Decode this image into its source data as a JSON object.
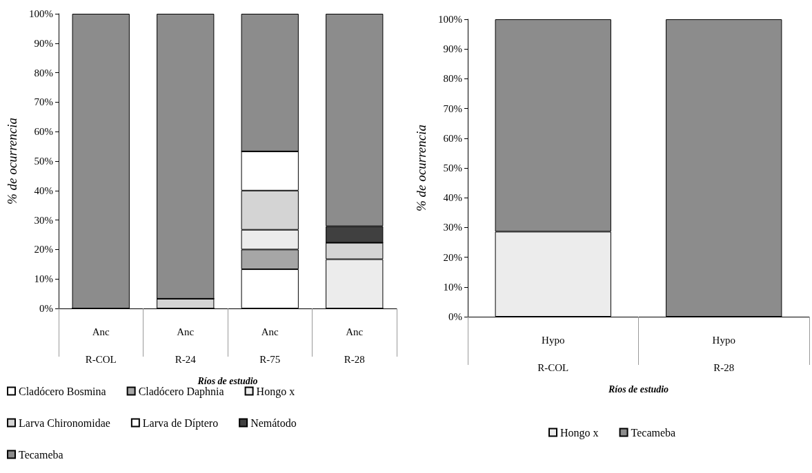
{
  "chart_data": [
    {
      "type": "bar",
      "stacked": true,
      "xlabel": "Ríos de estudio",
      "ylabel": "% de ocurrencia",
      "categories": [
        "Anc\nR-COL",
        "Anc\nR-24",
        "Anc\nR-75",
        "Anc\nR-28"
      ],
      "ylim": [
        0,
        100
      ],
      "yticks": [
        {
          "value": 0,
          "label": "0%"
        },
        {
          "value": 10,
          "label": "10%"
        },
        {
          "value": 20,
          "label": "20%"
        },
        {
          "value": 30,
          "label": "30%"
        },
        {
          "value": 40,
          "label": "40%"
        },
        {
          "value": 50,
          "label": "50%"
        },
        {
          "value": 60,
          "label": "60%"
        },
        {
          "value": 70,
          "label": "70%"
        },
        {
          "value": 80,
          "label": "80%"
        },
        {
          "value": 90,
          "label": "90%"
        },
        {
          "value": 100,
          "label": "100%"
        }
      ],
      "grid": false,
      "legend": "bottom left",
      "series": [
        {
          "name": "Cladócero Bosmina",
          "color": "#ffffff",
          "values": [
            0,
            0,
            13.3,
            0
          ]
        },
        {
          "name": "Cladócero Daphnia",
          "color": "#a6a6a6",
          "values": [
            0,
            0,
            6.7,
            0
          ]
        },
        {
          "name": "Hongo x",
          "color": "#ececec",
          "values": [
            0,
            0,
            6.7,
            16.7
          ]
        },
        {
          "name": "Larva Chironomidae",
          "color": "#d4d4d4",
          "values": [
            0,
            3.3,
            13.3,
            5.6
          ]
        },
        {
          "name": "Larva de Díptero",
          "color": "#ffffff",
          "values": [
            0,
            0,
            13.3,
            0
          ]
        },
        {
          "name": "Nemátodo",
          "color": "#404040",
          "values": [
            0,
            0,
            0,
            5.6
          ]
        },
        {
          "name": "Tecameba",
          "color": "#8c8c8c",
          "values": [
            100,
            96.7,
            46.7,
            72.1
          ]
        }
      ]
    },
    {
      "type": "bar",
      "stacked": true,
      "xlabel": "Ríos de estudio",
      "ylabel": "% de ocurrencia",
      "categories": [
        "Hypo\nR-COL",
        "Hypo\nR-28"
      ],
      "ylim": [
        0,
        100
      ],
      "yticks": [
        {
          "value": 0,
          "label": "0%"
        },
        {
          "value": 10,
          "label": "10%"
        },
        {
          "value": 20,
          "label": "20%"
        },
        {
          "value": 30,
          "label": "30%"
        },
        {
          "value": 40,
          "label": "40%"
        },
        {
          "value": 50,
          "label": "50%"
        },
        {
          "value": 60,
          "label": "60%"
        },
        {
          "value": 70,
          "label": "70%"
        },
        {
          "value": 80,
          "label": "80%"
        },
        {
          "value": 90,
          "label": "90%"
        },
        {
          "value": 100,
          "label": "100%"
        }
      ],
      "grid": false,
      "legend": "bottom",
      "series": [
        {
          "name": "Hongo x",
          "color": "#ececec",
          "values": [
            28.6,
            0
          ]
        },
        {
          "name": "Tecameba",
          "color": "#8c8c8c",
          "values": [
            71.4,
            100
          ]
        }
      ]
    }
  ]
}
